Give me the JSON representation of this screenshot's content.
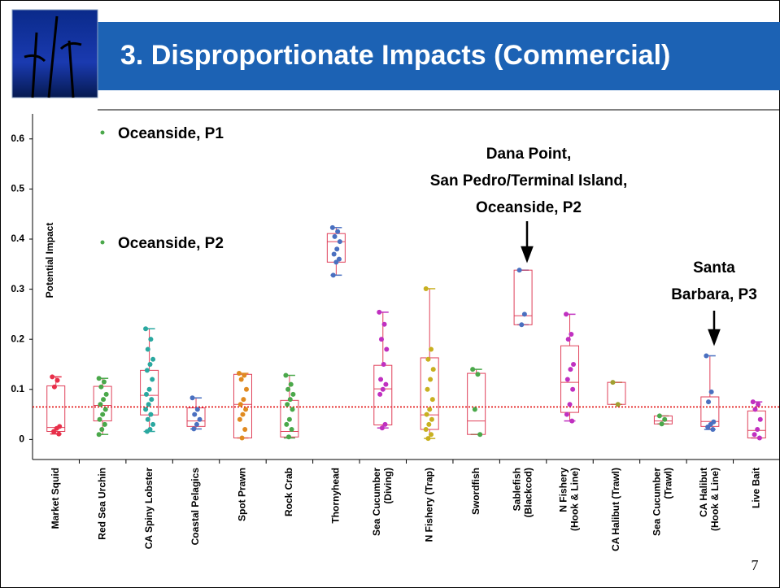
{
  "chart_data": {
    "type": "box",
    "title": "3. Disproportionate Impacts (Commercial)",
    "ylabel": "Potential Impact",
    "page_number": "7",
    "categories": [
      [
        "Market Squid"
      ],
      [
        "Red Sea Urchin"
      ],
      [
        "CA Spiny Lobster"
      ],
      [
        "Coastal Pelagics"
      ],
      [
        "Spot Prawn"
      ],
      [
        "Rock Crab"
      ],
      [
        "Thornyhead"
      ],
      [
        "Sea Cucumber",
        "(Diving)"
      ],
      [
        "N Fishery (Trap)"
      ],
      [
        "Swordfish"
      ],
      [
        "Sablefish",
        "(Blackcod)"
      ],
      [
        "N Fishery",
        "(Hook & Line)"
      ],
      [
        "CA Halibut (Trawl)"
      ],
      [
        "Sea Cucumber",
        "(Trawl)"
      ],
      [
        "CA Halibut",
        "(Hook & Line)"
      ],
      [
        "Live Bait"
      ]
    ],
    "groups": [
      {
        "color": "#e8304a",
        "min": 0.011,
        "q1": 0.016,
        "median": 0.024,
        "q3": 0.107,
        "max": 0.125,
        "points": [
          0.125,
          0.118,
          0.105,
          0.026,
          0.022,
          0.016,
          0.011
        ]
      },
      {
        "color": "#4aa84a",
        "min": 0.01,
        "q1": 0.037,
        "median": 0.068,
        "q3": 0.106,
        "max": 0.122,
        "points": [
          0.122,
          0.115,
          0.105,
          0.09,
          0.08,
          0.07,
          0.06,
          0.05,
          0.04,
          0.03,
          0.02,
          0.01
        ]
      },
      {
        "color": "#2aa8a0",
        "min": 0.016,
        "q1": 0.049,
        "median": 0.088,
        "q3": 0.138,
        "max": 0.221,
        "points": [
          0.221,
          0.2,
          0.18,
          0.16,
          0.15,
          0.138,
          0.12,
          0.1,
          0.09,
          0.08,
          0.07,
          0.06,
          0.05,
          0.04,
          0.03,
          0.02,
          0.016
        ]
      },
      {
        "color": "#4a70c0",
        "min": 0.021,
        "q1": 0.026,
        "median": 0.037,
        "q3": 0.063,
        "max": 0.083,
        "points": [
          0.083,
          0.06,
          0.05,
          0.04,
          0.03,
          0.021
        ]
      },
      {
        "color": "#e08a20",
        "min": 0.003,
        "q1": 0.003,
        "median": 0.07,
        "q3": 0.13,
        "max": 0.132,
        "points": [
          0.132,
          0.128,
          0.12,
          0.1,
          0.08,
          0.07,
          0.06,
          0.05,
          0.04,
          0.02,
          0.003
        ]
      },
      {
        "color": "#4aa84a",
        "min": 0.003,
        "q1": 0.005,
        "median": 0.016,
        "q3": 0.078,
        "max": 0.128,
        "points": [
          0.128,
          0.11,
          0.1,
          0.09,
          0.08,
          0.07,
          0.06,
          0.04,
          0.03,
          0.02,
          0.005
        ]
      },
      {
        "color": "#4a70c0",
        "min": 0.328,
        "q1": 0.354,
        "median": 0.395,
        "q3": 0.411,
        "max": 0.423,
        "points": [
          0.423,
          0.415,
          0.405,
          0.395,
          0.38,
          0.37,
          0.36,
          0.354,
          0.328
        ]
      },
      {
        "color": "#c030c0",
        "min": 0.023,
        "q1": 0.029,
        "median": 0.101,
        "q3": 0.148,
        "max": 0.254,
        "points": [
          0.254,
          0.23,
          0.2,
          0.18,
          0.15,
          0.12,
          0.11,
          0.1,
          0.09,
          0.03,
          0.023
        ]
      },
      {
        "color": "#c8b020",
        "min": 0.002,
        "q1": 0.02,
        "median": 0.049,
        "q3": 0.163,
        "max": 0.301,
        "points": [
          0.301,
          0.18,
          0.16,
          0.14,
          0.12,
          0.1,
          0.08,
          0.06,
          0.05,
          0.04,
          0.03,
          0.02,
          0.01,
          0.002
        ]
      },
      {
        "color": "#4aa84a",
        "min": 0.01,
        "q1": 0.01,
        "median": 0.037,
        "q3": 0.132,
        "max": 0.14,
        "points": [
          0.14,
          0.13,
          0.06,
          0.01
        ]
      },
      {
        "color": "#4a70c0",
        "min": 0.229,
        "q1": 0.229,
        "median": 0.247,
        "q3": 0.338,
        "max": 0.338,
        "points": [
          0.338,
          0.25,
          0.229
        ]
      },
      {
        "color": "#c030c0",
        "min": 0.037,
        "q1": 0.054,
        "median": 0.114,
        "q3": 0.187,
        "max": 0.25,
        "points": [
          0.25,
          0.21,
          0.2,
          0.15,
          0.14,
          0.12,
          0.1,
          0.07,
          0.05,
          0.037
        ]
      },
      {
        "color": "#a0a030",
        "min": 0.07,
        "q1": 0.07,
        "median": null,
        "q3": 0.114,
        "max": 0.114,
        "points": [
          0.114,
          0.07
        ]
      },
      {
        "color": "#4aa84a",
        "min": 0.031,
        "q1": 0.031,
        "median": 0.037,
        "q3": 0.047,
        "max": 0.047,
        "points": [
          0.047,
          0.04,
          0.031
        ]
      },
      {
        "color": "#4a70c0",
        "min": 0.02,
        "q1": 0.026,
        "median": 0.036,
        "q3": 0.085,
        "max": 0.167,
        "points": [
          0.167,
          0.095,
          0.075,
          0.035,
          0.03,
          0.025,
          0.02
        ]
      },
      {
        "color": "#c030c0",
        "min": 0.003,
        "q1": 0.003,
        "median": 0.018,
        "q3": 0.057,
        "max": 0.075,
        "points": [
          0.075,
          0.07,
          0.06,
          0.04,
          0.02,
          0.01,
          0.003
        ]
      }
    ],
    "box_color": "#e0405a",
    "reference_line": 0.065,
    "reference_color": "#e00000",
    "ylim": [
      -0.04,
      0.65
    ],
    "yticks": [
      0,
      0.1,
      0.2,
      0.3,
      0.4,
      0.5,
      0.6
    ],
    "annotations": {
      "p1": "Oceanside, P1",
      "p2": "Oceanside, P2",
      "dana": [
        "Dana Point,",
        "San Pedro/Terminal Island,",
        "Oceanside, P2"
      ],
      "santa": [
        "Santa",
        "Barbara, P3"
      ]
    }
  }
}
